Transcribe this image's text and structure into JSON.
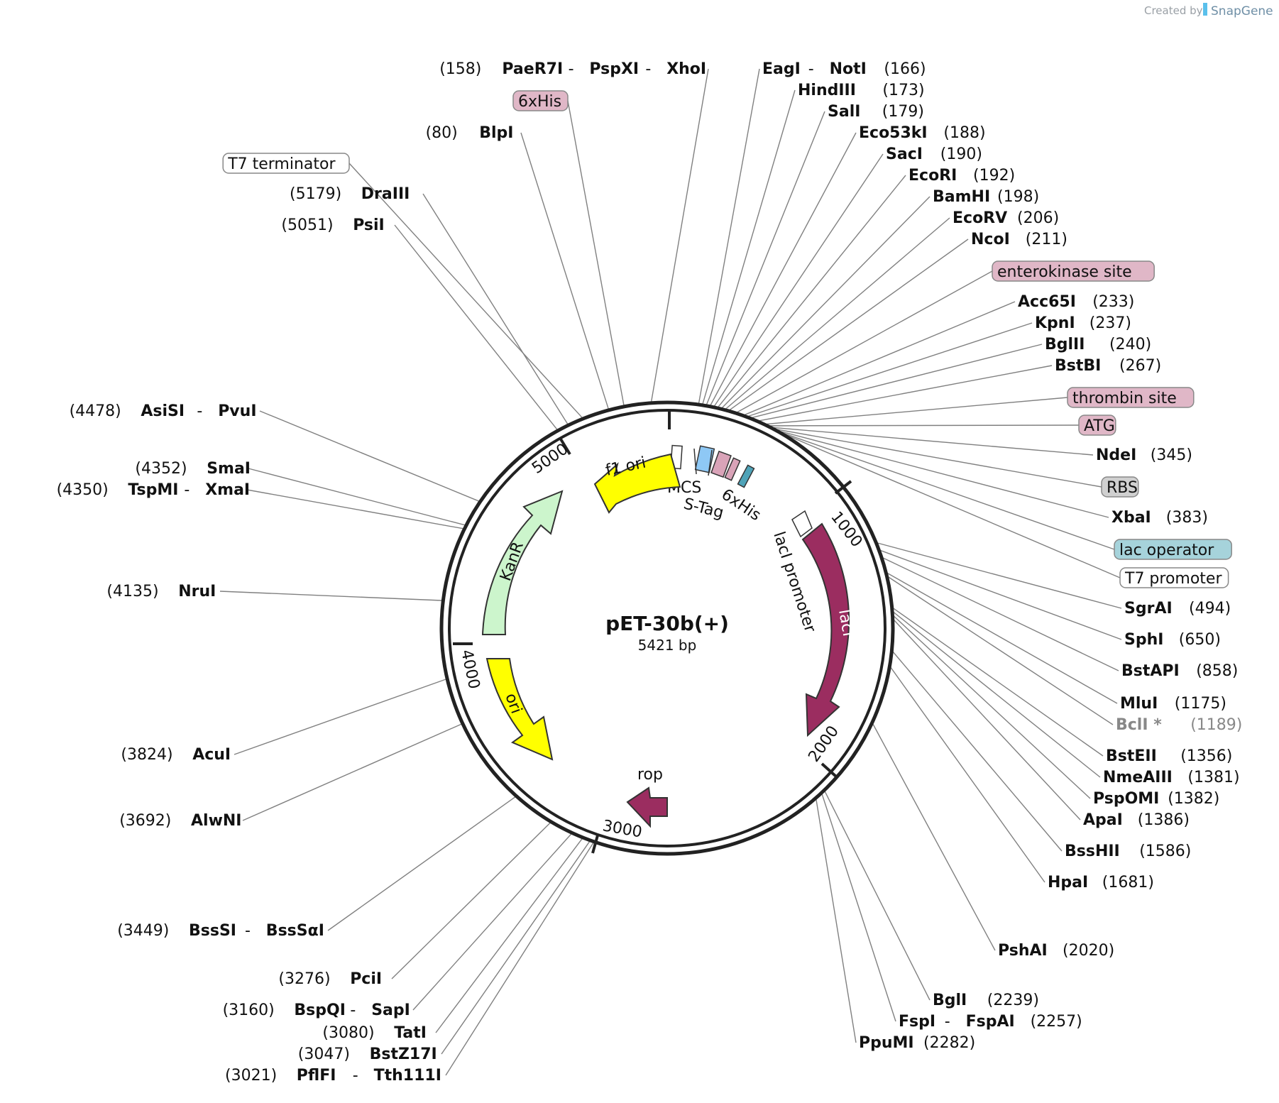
{
  "header": {
    "credit": "Created by",
    "brand": "SnapGene"
  },
  "plasmid": {
    "name": "pET-30b(+)",
    "length_label": "5421 bp"
  },
  "ruler": [
    "1000",
    "2000",
    "3000",
    "4000",
    "5000"
  ],
  "features": {
    "f1_ori": "f1 ori",
    "kanr": "KanR",
    "ori": "ori",
    "laci": "lacI",
    "laci_promoter": "lacI promoter",
    "rop": "rop",
    "mcs": "MCS",
    "stag": "S-Tag",
    "his_inner": "6xHis"
  },
  "labels_right": [
    {
      "names": [
        "EagI",
        "NotI"
      ],
      "pos": "(166)"
    },
    {
      "names": [
        "HindIII"
      ],
      "pos": "(173)"
    },
    {
      "names": [
        "SalI"
      ],
      "pos": "(179)"
    },
    {
      "names": [
        "Eco53kI"
      ],
      "pos": "(188)"
    },
    {
      "names": [
        "SacI"
      ],
      "pos": "(190)"
    },
    {
      "names": [
        "EcoRI"
      ],
      "pos": "(192)"
    },
    {
      "names": [
        "BamHI"
      ],
      "pos": "(198)"
    },
    {
      "names": [
        "EcoRV"
      ],
      "pos": "(206)"
    },
    {
      "names": [
        "NcoI"
      ],
      "pos": "(211)"
    },
    {
      "feature": "enterokinase site",
      "color": "#e0b7c7"
    },
    {
      "names": [
        "Acc65I"
      ],
      "pos": "(233)"
    },
    {
      "names": [
        "KpnI"
      ],
      "pos": "(237)"
    },
    {
      "names": [
        "BglII"
      ],
      "pos": "(240)"
    },
    {
      "names": [
        "BstBI"
      ],
      "pos": "(267)"
    },
    {
      "feature": "thrombin site",
      "color": "#e0b7c7"
    },
    {
      "feature": "ATG",
      "color": "#e0b7c7"
    },
    {
      "names": [
        "NdeI"
      ],
      "pos": "(345)"
    },
    {
      "feature": "RBS",
      "color": "#d0d0d0"
    },
    {
      "names": [
        "XbaI"
      ],
      "pos": "(383)"
    },
    {
      "feature": "lac operator",
      "color": "#a6d3db"
    },
    {
      "feature": "T7 promoter",
      "color": "#ffffff"
    },
    {
      "names": [
        "SgrAI"
      ],
      "pos": "(494)"
    },
    {
      "names": [
        "SphI"
      ],
      "pos": "(650)"
    },
    {
      "names": [
        "BstAPI"
      ],
      "pos": "(858)"
    },
    {
      "names": [
        "MluI"
      ],
      "pos": "(1175)"
    },
    {
      "names": [
        "BclI *"
      ],
      "pos": "(1189)",
      "gray": true
    },
    {
      "names": [
        "BstEII"
      ],
      "pos": "(1356)"
    },
    {
      "names": [
        "NmeAIII"
      ],
      "pos": "(1381)"
    },
    {
      "names": [
        "PspOMI"
      ],
      "pos": "(1382)"
    },
    {
      "names": [
        "ApaI"
      ],
      "pos": "(1386)"
    },
    {
      "names": [
        "BssHII"
      ],
      "pos": "(1586)"
    },
    {
      "names": [
        "HpaI"
      ],
      "pos": "(1681)"
    },
    {
      "names": [
        "PshAI"
      ],
      "pos": "(2020)"
    },
    {
      "names": [
        "BglI"
      ],
      "pos": "(2239)"
    },
    {
      "names": [
        "FspI",
        "FspAI"
      ],
      "pos": "(2257)"
    },
    {
      "names": [
        "PpuMI"
      ],
      "pos": "(2282)"
    }
  ],
  "labels_left": [
    {
      "names": [
        "PaeR7I",
        "PspXI",
        "XhoI"
      ],
      "pos": "(158)"
    },
    {
      "feature": "6xHis",
      "color": "#e0b7c7"
    },
    {
      "names": [
        "BlpI"
      ],
      "pos": "(80)"
    },
    {
      "feature": "T7 terminator",
      "color": "#ffffff"
    },
    {
      "names": [
        "DraIII"
      ],
      "pos": "(5179)"
    },
    {
      "names": [
        "PsiI"
      ],
      "pos": "(5051)"
    },
    {
      "names": [
        "AsiSI",
        "PvuI"
      ],
      "pos": "(4478)"
    },
    {
      "names": [
        "SmaI"
      ],
      "pos": "(4352)"
    },
    {
      "names": [
        "TspMI",
        "XmaI"
      ],
      "pos": "(4350)"
    },
    {
      "names": [
        "NruI"
      ],
      "pos": "(4135)"
    },
    {
      "names": [
        "AcuI"
      ],
      "pos": "(3824)"
    },
    {
      "names": [
        "AlwNI"
      ],
      "pos": "(3692)"
    },
    {
      "names": [
        "BssSI",
        "BssSαI"
      ],
      "pos": "(3449)"
    },
    {
      "names": [
        "PciI"
      ],
      "pos": "(3276)"
    },
    {
      "names": [
        "BspQI",
        "SapI"
      ],
      "pos": "(3160)"
    },
    {
      "names": [
        "TatI"
      ],
      "pos": "(3080)"
    },
    {
      "names": [
        "BstZ17I"
      ],
      "pos": "(3047)"
    },
    {
      "names": [
        "PflFI",
        "Tth111I"
      ],
      "pos": "(3021)"
    }
  ],
  "colors": {
    "ring": "#222222",
    "ori": "#ffff00",
    "kanr": "#ccf5cc",
    "laci": "#9b2d60",
    "leader": "#808080"
  }
}
